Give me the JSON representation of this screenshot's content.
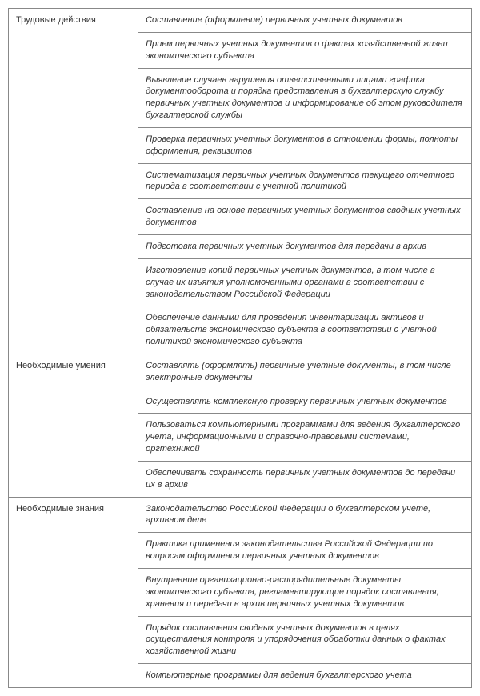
{
  "sections": [
    {
      "label": "Трудовые действия",
      "items": [
        "Составление (оформление) первичных учетных документов",
        "Прием первичных учетных документов о фактах хозяйственной жизни экономического субъекта",
        "Выявление случаев нарушения ответственными лицами графика документооборота и порядка представления в бухгалтерскую службу первичных учетных документов и информирование об этом руководителя бухгалтерской службы",
        "Проверка первичных учетных документов в отношении формы, полноты оформления, реквизитов",
        "Систематизация первичных учетных документов текущего отчетного периода в соответствии с учетной политикой",
        "Составление на основе первичных учетных документов сводных учетных документов",
        "Подготовка первичных учетных документов для передачи в архив",
        "Изготовление копий первичных учетных документов, в том числе в случае их изъятия уполномоченными органами в соответствии с законодательством Российской Федерации",
        "Обеспечение данными для проведения инвентаризации активов и обязательств экономического субъекта в соответствии с учетной политикой экономического субъекта"
      ]
    },
    {
      "label": "Необходимые умения",
      "items": [
        "Составлять (оформлять) первичные учетные документы, в том числе электронные документы",
        "Осуществлять комплексную проверку первичных учетных документов",
        "Пользоваться компьютерными программами для ведения бухгалтерского учета, информационными и справочно-правовыми системами, оргтехникой",
        "Обеспечивать сохранность первичных учетных документов до передачи их в архив"
      ]
    },
    {
      "label": "Необходимые знания",
      "items": [
        "Законодательство Российской Федерации о бухгалтерском учете, архивном деле",
        "Практика применения законодательства Российской Федерации по вопросам оформления первичных учетных документов",
        "Внутренние организационно-распорядительные документы экономического субъекта, регламентирующие порядок составления, хранения и передачи в архив первичных учетных документов",
        "Порядок составления сводных учетных документов в целях осуществления контроля и упорядочения обработки данных о фактах хозяйственной жизни",
        "Компьютерные программы для ведения бухгалтерского учета"
      ]
    }
  ],
  "style": {
    "border_color": "#888888",
    "text_color": "#333333",
    "background_color": "#ffffff",
    "font_size": 11,
    "label_col_width_pct": 28,
    "content_col_width_pct": 72,
    "content_font_style": "italic"
  }
}
